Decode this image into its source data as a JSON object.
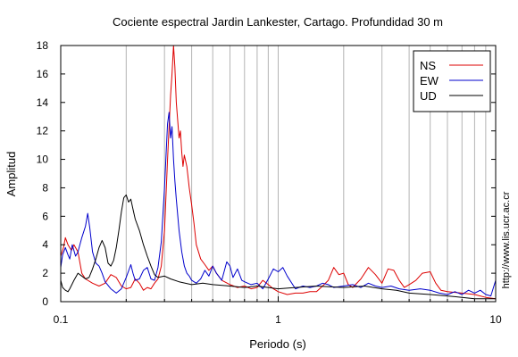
{
  "chart_data": {
    "type": "line",
    "title": "Cociente espectral Jardin Lankester, Cartago. Profundidad 30 m",
    "xlabel": "Periodo (s)",
    "ylabel": "Amplitud",
    "xscale": "log",
    "xlim": [
      0.1,
      10
    ],
    "ylim": [
      0,
      18
    ],
    "x_ticks": [
      0.1,
      1,
      10
    ],
    "x_tick_labels": [
      "0.1",
      "1",
      "10"
    ],
    "y_ticks": [
      0,
      2,
      4,
      6,
      8,
      10,
      12,
      14,
      16,
      18
    ],
    "y_tick_labels": [
      "0",
      "2",
      "4",
      "6",
      "8",
      "10",
      "12",
      "14",
      "16",
      "18"
    ],
    "vertical_grid": true,
    "horizontal_grid": false,
    "legend_position": "top-right",
    "side_text": "http://www.lis.ucr.ac.cr",
    "series": [
      {
        "name": "NS",
        "color": "#dd0000",
        "points": [
          [
            0.1,
            3.2
          ],
          [
            0.103,
            3.8
          ],
          [
            0.105,
            4.5
          ],
          [
            0.108,
            4.0
          ],
          [
            0.112,
            3.6
          ],
          [
            0.115,
            4.0
          ],
          [
            0.12,
            3.5
          ],
          [
            0.125,
            2.0
          ],
          [
            0.13,
            1.6
          ],
          [
            0.14,
            1.3
          ],
          [
            0.15,
            1.1
          ],
          [
            0.16,
            1.3
          ],
          [
            0.17,
            1.9
          ],
          [
            0.18,
            1.7
          ],
          [
            0.19,
            1.1
          ],
          [
            0.2,
            0.9
          ],
          [
            0.21,
            1.0
          ],
          [
            0.22,
            1.6
          ],
          [
            0.23,
            1.3
          ],
          [
            0.24,
            0.8
          ],
          [
            0.25,
            1.0
          ],
          [
            0.26,
            0.9
          ],
          [
            0.27,
            1.3
          ],
          [
            0.28,
            1.6
          ],
          [
            0.29,
            2.5
          ],
          [
            0.3,
            5.0
          ],
          [
            0.31,
            10.0
          ],
          [
            0.32,
            14.5
          ],
          [
            0.325,
            16.0
          ],
          [
            0.33,
            18.0
          ],
          [
            0.335,
            16.5
          ],
          [
            0.34,
            14.0
          ],
          [
            0.35,
            11.5
          ],
          [
            0.355,
            12.0
          ],
          [
            0.36,
            10.5
          ],
          [
            0.365,
            9.5
          ],
          [
            0.37,
            10.3
          ],
          [
            0.38,
            9.5
          ],
          [
            0.39,
            8.0
          ],
          [
            0.4,
            6.8
          ],
          [
            0.41,
            5.5
          ],
          [
            0.42,
            4.0
          ],
          [
            0.44,
            3.0
          ],
          [
            0.46,
            2.6
          ],
          [
            0.48,
            2.2
          ],
          [
            0.5,
            2.5
          ],
          [
            0.52,
            2.0
          ],
          [
            0.55,
            1.5
          ],
          [
            0.6,
            1.2
          ],
          [
            0.65,
            1.0
          ],
          [
            0.7,
            1.1
          ],
          [
            0.75,
            0.9
          ],
          [
            0.8,
            1.0
          ],
          [
            0.85,
            1.5
          ],
          [
            0.9,
            1.2
          ],
          [
            0.95,
            0.9
          ],
          [
            1.0,
            0.7
          ],
          [
            1.1,
            0.5
          ],
          [
            1.2,
            0.6
          ],
          [
            1.3,
            0.6
          ],
          [
            1.4,
            0.7
          ],
          [
            1.5,
            0.7
          ],
          [
            1.6,
            1.1
          ],
          [
            1.7,
            1.5
          ],
          [
            1.8,
            2.4
          ],
          [
            1.9,
            1.9
          ],
          [
            2.0,
            2.0
          ],
          [
            2.1,
            1.2
          ],
          [
            2.2,
            1.0
          ],
          [
            2.4,
            1.6
          ],
          [
            2.6,
            2.4
          ],
          [
            2.8,
            1.9
          ],
          [
            3.0,
            1.3
          ],
          [
            3.2,
            2.3
          ],
          [
            3.4,
            2.2
          ],
          [
            3.6,
            1.5
          ],
          [
            3.8,
            1.0
          ],
          [
            4.0,
            1.2
          ],
          [
            4.3,
            1.5
          ],
          [
            4.6,
            2.0
          ],
          [
            5.0,
            2.1
          ],
          [
            5.3,
            1.3
          ],
          [
            5.6,
            0.8
          ],
          [
            6.0,
            0.7
          ],
          [
            7.0,
            0.6
          ],
          [
            8.0,
            0.5
          ],
          [
            9.0,
            0.3
          ],
          [
            10.0,
            0.2
          ]
        ]
      },
      {
        "name": "EW",
        "color": "#0000cc",
        "points": [
          [
            0.1,
            2.4
          ],
          [
            0.102,
            3.3
          ],
          [
            0.105,
            3.8
          ],
          [
            0.108,
            3.3
          ],
          [
            0.11,
            3.0
          ],
          [
            0.113,
            4.0
          ],
          [
            0.117,
            3.2
          ],
          [
            0.12,
            3.5
          ],
          [
            0.125,
            4.5
          ],
          [
            0.13,
            5.3
          ],
          [
            0.133,
            6.2
          ],
          [
            0.136,
            5.2
          ],
          [
            0.14,
            3.5
          ],
          [
            0.145,
            2.7
          ],
          [
            0.15,
            2.5
          ],
          [
            0.155,
            2.0
          ],
          [
            0.16,
            1.4
          ],
          [
            0.17,
            0.9
          ],
          [
            0.18,
            0.6
          ],
          [
            0.19,
            0.9
          ],
          [
            0.2,
            1.7
          ],
          [
            0.21,
            2.6
          ],
          [
            0.215,
            2.0
          ],
          [
            0.22,
            1.5
          ],
          [
            0.23,
            1.6
          ],
          [
            0.24,
            2.2
          ],
          [
            0.25,
            2.4
          ],
          [
            0.26,
            1.6
          ],
          [
            0.27,
            1.5
          ],
          [
            0.28,
            2.4
          ],
          [
            0.29,
            4.2
          ],
          [
            0.3,
            8.0
          ],
          [
            0.31,
            12.5
          ],
          [
            0.315,
            13.3
          ],
          [
            0.32,
            11.5
          ],
          [
            0.325,
            12.3
          ],
          [
            0.33,
            10.0
          ],
          [
            0.335,
            8.5
          ],
          [
            0.34,
            7.2
          ],
          [
            0.35,
            5.0
          ],
          [
            0.36,
            3.5
          ],
          [
            0.37,
            2.5
          ],
          [
            0.38,
            2.0
          ],
          [
            0.39,
            1.8
          ],
          [
            0.4,
            1.5
          ],
          [
            0.42,
            1.3
          ],
          [
            0.44,
            1.6
          ],
          [
            0.46,
            2.2
          ],
          [
            0.48,
            1.8
          ],
          [
            0.5,
            2.5
          ],
          [
            0.52,
            2.0
          ],
          [
            0.55,
            1.5
          ],
          [
            0.58,
            2.8
          ],
          [
            0.6,
            2.5
          ],
          [
            0.62,
            1.7
          ],
          [
            0.65,
            2.3
          ],
          [
            0.68,
            1.5
          ],
          [
            0.7,
            1.4
          ],
          [
            0.75,
            1.2
          ],
          [
            0.8,
            1.3
          ],
          [
            0.85,
            0.9
          ],
          [
            0.9,
            1.6
          ],
          [
            0.95,
            2.3
          ],
          [
            1.0,
            2.1
          ],
          [
            1.05,
            2.4
          ],
          [
            1.1,
            1.8
          ],
          [
            1.2,
            0.9
          ],
          [
            1.3,
            1.1
          ],
          [
            1.4,
            1.0
          ],
          [
            1.5,
            1.1
          ],
          [
            1.6,
            1.3
          ],
          [
            1.7,
            1.2
          ],
          [
            1.8,
            1.0
          ],
          [
            2.0,
            1.1
          ],
          [
            2.2,
            1.2
          ],
          [
            2.4,
            1.0
          ],
          [
            2.6,
            1.3
          ],
          [
            2.8,
            1.1
          ],
          [
            3.0,
            1.0
          ],
          [
            3.3,
            1.1
          ],
          [
            3.6,
            0.9
          ],
          [
            4.0,
            0.8
          ],
          [
            4.5,
            0.9
          ],
          [
            5.0,
            0.8
          ],
          [
            5.5,
            0.6
          ],
          [
            6.0,
            0.5
          ],
          [
            6.5,
            0.7
          ],
          [
            7.0,
            0.5
          ],
          [
            7.5,
            0.8
          ],
          [
            8.0,
            0.6
          ],
          [
            8.5,
            0.8
          ],
          [
            9.0,
            0.5
          ],
          [
            9.5,
            0.4
          ],
          [
            10.0,
            1.5
          ]
        ]
      },
      {
        "name": "UD",
        "color": "#000000",
        "points": [
          [
            0.1,
            1.5
          ],
          [
            0.102,
            1.0
          ],
          [
            0.105,
            0.8
          ],
          [
            0.108,
            0.7
          ],
          [
            0.11,
            0.9
          ],
          [
            0.115,
            1.5
          ],
          [
            0.12,
            2.0
          ],
          [
            0.125,
            1.8
          ],
          [
            0.13,
            1.6
          ],
          [
            0.135,
            1.7
          ],
          [
            0.14,
            2.3
          ],
          [
            0.145,
            3.0
          ],
          [
            0.15,
            3.8
          ],
          [
            0.155,
            4.3
          ],
          [
            0.16,
            3.8
          ],
          [
            0.165,
            2.7
          ],
          [
            0.17,
            2.5
          ],
          [
            0.175,
            2.9
          ],
          [
            0.18,
            3.8
          ],
          [
            0.185,
            5.0
          ],
          [
            0.19,
            6.3
          ],
          [
            0.195,
            7.3
          ],
          [
            0.2,
            7.5
          ],
          [
            0.205,
            7.0
          ],
          [
            0.21,
            7.2
          ],
          [
            0.215,
            6.5
          ],
          [
            0.22,
            5.8
          ],
          [
            0.23,
            5.0
          ],
          [
            0.24,
            4.0
          ],
          [
            0.25,
            3.2
          ],
          [
            0.26,
            2.5
          ],
          [
            0.27,
            1.9
          ],
          [
            0.28,
            1.7
          ],
          [
            0.3,
            1.8
          ],
          [
            0.32,
            1.6
          ],
          [
            0.35,
            1.4
          ],
          [
            0.4,
            1.2
          ],
          [
            0.45,
            1.3
          ],
          [
            0.5,
            1.2
          ],
          [
            0.6,
            1.1
          ],
          [
            0.7,
            1.0
          ],
          [
            0.8,
            1.1
          ],
          [
            1.0,
            0.9
          ],
          [
            1.2,
            1.0
          ],
          [
            1.5,
            1.1
          ],
          [
            2.0,
            1.0
          ],
          [
            2.5,
            1.1
          ],
          [
            3.0,
            0.9
          ],
          [
            3.5,
            0.8
          ],
          [
            4.0,
            0.6
          ],
          [
            5.0,
            0.5
          ],
          [
            6.0,
            0.4
          ],
          [
            7.0,
            0.3
          ],
          [
            8.0,
            0.2
          ],
          [
            9.0,
            0.2
          ],
          [
            10.0,
            0.2
          ]
        ]
      }
    ]
  }
}
